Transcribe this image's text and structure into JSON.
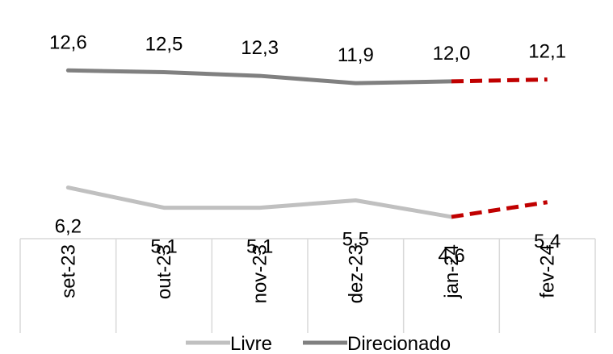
{
  "chart_data": {
    "type": "line",
    "title": "",
    "xlabel": "",
    "ylabel": "",
    "ylim": [
      0,
      14
    ],
    "grid": false,
    "legend_position": "bottom",
    "categories": [
      "set-23",
      "out-23",
      "nov-23",
      "dez-23",
      "jan-24",
      "fev-24"
    ],
    "projection_start_index": 4,
    "projection_color": "#C00000",
    "series": [
      {
        "name": "Livre",
        "color": "#C0C0C0",
        "values": [
          6.2,
          5.1,
          5.1,
          5.5,
          4.6,
          5.4
        ],
        "labels": [
          "6,2",
          "5,1",
          "5,1",
          "5,5",
          "4,6",
          "5,4"
        ],
        "label_position": "below"
      },
      {
        "name": "Direcionado",
        "color": "#808080",
        "values": [
          12.6,
          12.5,
          12.3,
          11.9,
          12.0,
          12.1
        ],
        "labels": [
          "12,6",
          "12,5",
          "12,3",
          "11,9",
          "12,0",
          "12,1"
        ],
        "label_position": "above"
      }
    ]
  }
}
